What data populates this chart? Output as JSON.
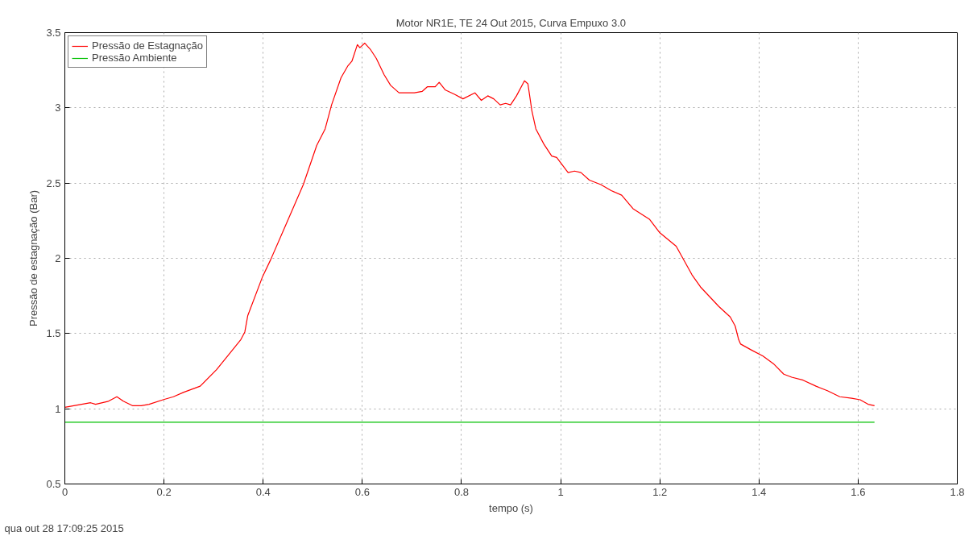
{
  "chart_data": {
    "type": "line",
    "title": "Motor NR1E, TE 24 Out 2015, Curva Empuxo 3.0",
    "xlabel": "tempo (s)",
    "ylabel": "Pressão de estagnação (Bar)",
    "xlim": [
      0,
      1.8
    ],
    "ylim": [
      0.5,
      3.5
    ],
    "xticks": [
      0,
      0.2,
      0.4,
      0.6,
      0.8,
      1,
      1.2,
      1.4,
      1.6,
      1.8
    ],
    "yticks": [
      0.5,
      1,
      1.5,
      2,
      2.5,
      3,
      3.5
    ],
    "grid": true,
    "legend": "top left",
    "line_style": "solid",
    "marker": "none",
    "annotations": [
      "qua out 28 17:09:25 2015"
    ],
    "series": [
      {
        "name": "Pressão de Estagnação",
        "color": "#ff0000",
        "x": [
          0,
          0.052,
          0.062,
          0.088,
          0.105,
          0.118,
          0.137,
          0.154,
          0.17,
          0.198,
          0.219,
          0.24,
          0.273,
          0.306,
          0.333,
          0.355,
          0.363,
          0.369,
          0.399,
          0.415,
          0.448,
          0.481,
          0.508,
          0.525,
          0.538,
          0.557,
          0.571,
          0.579,
          0.59,
          0.595,
          0.605,
          0.616,
          0.628,
          0.644,
          0.657,
          0.674,
          0.705,
          0.721,
          0.731,
          0.747,
          0.755,
          0.767,
          0.786,
          0.803,
          0.827,
          0.84,
          0.853,
          0.865,
          0.878,
          0.889,
          0.899,
          0.911,
          0.927,
          0.934,
          0.942,
          0.95,
          0.966,
          0.982,
          0.992,
          1.015,
          1.028,
          1.041,
          1.058,
          1.081,
          1.102,
          1.123,
          1.146,
          1.179,
          1.2,
          1.233,
          1.265,
          1.282,
          1.319,
          1.342,
          1.352,
          1.359,
          1.363,
          1.385,
          1.408,
          1.429,
          1.45,
          1.466,
          1.489,
          1.515,
          1.538,
          1.563,
          1.587,
          1.604,
          1.62,
          1.633
        ],
        "values": [
          1.01,
          1.04,
          1.03,
          1.05,
          1.08,
          1.05,
          1.02,
          1.02,
          1.03,
          1.06,
          1.08,
          1.11,
          1.15,
          1.26,
          1.37,
          1.46,
          1.51,
          1.62,
          1.88,
          1.99,
          2.24,
          2.49,
          2.75,
          2.86,
          3.02,
          3.2,
          3.28,
          3.31,
          3.42,
          3.4,
          3.43,
          3.39,
          3.33,
          3.22,
          3.15,
          3.1,
          3.1,
          3.11,
          3.14,
          3.14,
          3.17,
          3.12,
          3.09,
          3.06,
          3.1,
          3.05,
          3.08,
          3.06,
          3.02,
          3.03,
          3.02,
          3.08,
          3.18,
          3.16,
          2.98,
          2.86,
          2.76,
          2.68,
          2.67,
          2.57,
          2.58,
          2.57,
          2.52,
          2.49,
          2.45,
          2.42,
          2.33,
          2.26,
          2.17,
          2.08,
          1.89,
          1.81,
          1.68,
          1.61,
          1.55,
          1.46,
          1.43,
          1.39,
          1.35,
          1.3,
          1.23,
          1.21,
          1.19,
          1.15,
          1.12,
          1.08,
          1.07,
          1.06,
          1.03,
          1.02
        ]
      },
      {
        "name": "Pressão Ambiente",
        "color": "#00c000",
        "x": [
          0,
          1.633
        ],
        "values": [
          0.91,
          0.91
        ]
      }
    ]
  }
}
